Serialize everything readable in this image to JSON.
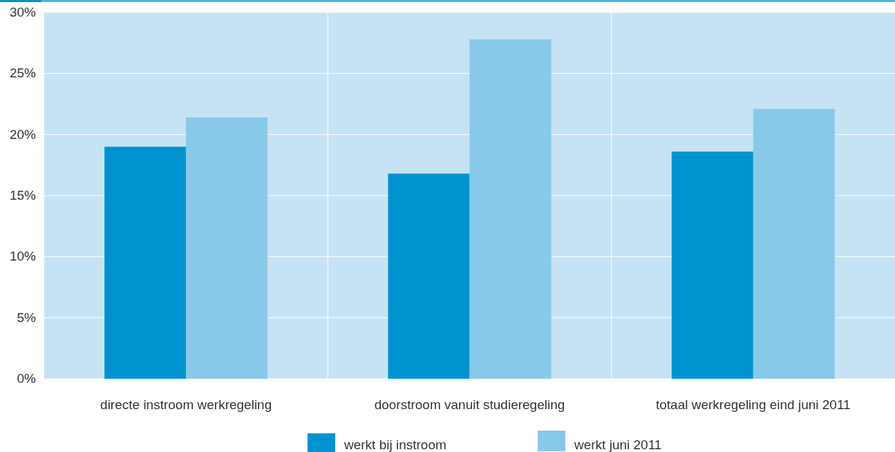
{
  "chart_data": {
    "type": "bar",
    "categories": [
      "directe instroom werkregeling",
      "doorstroom vanuit studieregeling",
      "totaal werkregeling eind juni 2011"
    ],
    "series": [
      {
        "name": "werkt bij instroom",
        "color": "#0093d0",
        "values": [
          19.0,
          16.8,
          18.6
        ]
      },
      {
        "name": "werkt juni 2011",
        "color": "#88c8e9",
        "values": [
          21.4,
          27.8,
          22.1
        ]
      }
    ],
    "ylim": [
      0,
      30
    ],
    "yticks": [
      {
        "value": 0,
        "label": "0%"
      },
      {
        "value": 5,
        "label": "5%"
      },
      {
        "value": 10,
        "label": "10%"
      },
      {
        "value": 15,
        "label": "15%"
      },
      {
        "value": 20,
        "label": "20%"
      },
      {
        "value": 25,
        "label": "25%"
      },
      {
        "value": 30,
        "label": "30%"
      }
    ],
    "grid": true,
    "legend": "bottom"
  }
}
